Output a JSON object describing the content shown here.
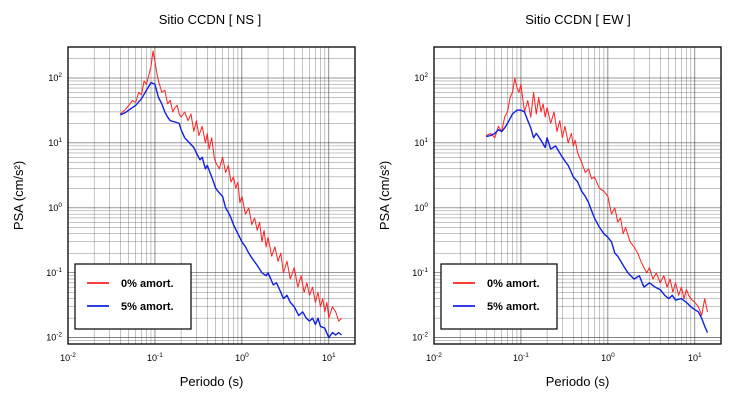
{
  "chart_data": [
    {
      "type": "line",
      "title": "Sitio CCDN [ NS ]",
      "xlabel": "Periodo (s)",
      "ylabel": "PSA (cm/s²)",
      "xscale": "log",
      "yscale": "log",
      "xlim": [
        0.01,
        20
      ],
      "ylim": [
        0.008,
        300
      ],
      "xticks": [
        {
          "value": 0.01,
          "label": "10",
          "exp": "-2"
        },
        {
          "value": 0.1,
          "label": "10",
          "exp": "-1"
        },
        {
          "value": 1,
          "label": "10",
          "exp": "0"
        },
        {
          "value": 10,
          "label": "10",
          "exp": "1"
        }
      ],
      "yticks": [
        {
          "value": 0.01,
          "label": "10",
          "exp": "-2"
        },
        {
          "value": 0.1,
          "label": "10",
          "exp": "-1"
        },
        {
          "value": 1,
          "label": "10",
          "exp": "0"
        },
        {
          "value": 10,
          "label": "10",
          "exp": "1"
        },
        {
          "value": 100,
          "label": "10",
          "exp": "2"
        }
      ],
      "grid": true,
      "legend_position": "bottom-left",
      "series": [
        {
          "name": "0% amort.",
          "color": "#ff2020",
          "x": [
            0.04,
            0.045,
            0.05,
            0.055,
            0.06,
            0.065,
            0.07,
            0.075,
            0.08,
            0.085,
            0.09,
            0.095,
            0.1,
            0.105,
            0.11,
            0.12,
            0.13,
            0.14,
            0.15,
            0.16,
            0.17,
            0.18,
            0.19,
            0.2,
            0.22,
            0.24,
            0.26,
            0.28,
            0.3,
            0.32,
            0.35,
            0.38,
            0.4,
            0.42,
            0.45,
            0.48,
            0.5,
            0.55,
            0.6,
            0.65,
            0.7,
            0.75,
            0.8,
            0.85,
            0.9,
            0.95,
            1.0,
            1.1,
            1.2,
            1.3,
            1.4,
            1.5,
            1.6,
            1.7,
            1.8,
            1.9,
            2.0,
            2.2,
            2.4,
            2.6,
            2.8,
            3.0,
            3.3,
            3.6,
            4.0,
            4.4,
            4.8,
            5.2,
            5.6,
            6.0,
            6.5,
            7.0,
            7.5,
            8.0,
            8.5,
            9.0,
            9.5,
            10.0,
            11.0,
            12.0,
            13.0,
            14.0
          ],
          "y": [
            28,
            32,
            38,
            45,
            42,
            60,
            55,
            90,
            80,
            110,
            150,
            260,
            180,
            120,
            90,
            60,
            65,
            40,
            45,
            30,
            35,
            38,
            28,
            25,
            30,
            22,
            28,
            15,
            22,
            13,
            18,
            10,
            14,
            8,
            12,
            6,
            5,
            4,
            6,
            3.5,
            4.5,
            2.5,
            3,
            2,
            2.5,
            1.2,
            1.5,
            0.8,
            1.0,
            0.55,
            0.7,
            0.45,
            0.6,
            0.3,
            0.45,
            0.25,
            0.35,
            0.18,
            0.25,
            0.15,
            0.2,
            0.1,
            0.15,
            0.08,
            0.12,
            0.06,
            0.09,
            0.05,
            0.07,
            0.045,
            0.06,
            0.035,
            0.05,
            0.03,
            0.04,
            0.025,
            0.035,
            0.02,
            0.03,
            0.025,
            0.018,
            0.02
          ]
        },
        {
          "name": "5% amort.",
          "color": "#1020e0",
          "x": [
            0.04,
            0.045,
            0.05,
            0.06,
            0.07,
            0.08,
            0.09,
            0.1,
            0.11,
            0.12,
            0.13,
            0.14,
            0.15,
            0.17,
            0.19,
            0.2,
            0.22,
            0.25,
            0.28,
            0.3,
            0.33,
            0.35,
            0.38,
            0.4,
            0.43,
            0.45,
            0.5,
            0.55,
            0.6,
            0.65,
            0.7,
            0.75,
            0.8,
            0.9,
            1.0,
            1.1,
            1.2,
            1.3,
            1.5,
            1.7,
            1.9,
            2.0,
            2.3,
            2.5,
            2.8,
            3.0,
            3.3,
            3.6,
            4.0,
            4.5,
            5.0,
            5.5,
            6.0,
            6.5,
            7.0,
            7.5,
            8.0,
            9.0,
            10.0,
            11.0,
            12.0,
            13.0,
            14.0
          ],
          "y": [
            27,
            29,
            32,
            38,
            48,
            65,
            85,
            80,
            50,
            40,
            30,
            25,
            22,
            21,
            20,
            16,
            12,
            10,
            8.5,
            7,
            5.5,
            6,
            4,
            4.5,
            3.5,
            3,
            2,
            1.7,
            1.5,
            1.0,
            0.85,
            0.7,
            0.55,
            0.4,
            0.3,
            0.25,
            0.2,
            0.17,
            0.13,
            0.1,
            0.09,
            0.1,
            0.065,
            0.07,
            0.05,
            0.04,
            0.045,
            0.035,
            0.03,
            0.022,
            0.025,
            0.02,
            0.018,
            0.02,
            0.016,
            0.02,
            0.015,
            0.014,
            0.01,
            0.012,
            0.011,
            0.012,
            0.011
          ]
        }
      ]
    },
    {
      "type": "line",
      "title": "Sitio CCDN [ EW ]",
      "xlabel": "Periodo (s)",
      "ylabel": "PSA (cm/s²)",
      "xscale": "log",
      "yscale": "log",
      "xlim": [
        0.01,
        20
      ],
      "ylim": [
        0.008,
        300
      ],
      "xticks": [
        {
          "value": 0.01,
          "label": "10",
          "exp": "-2"
        },
        {
          "value": 0.1,
          "label": "10",
          "exp": "-1"
        },
        {
          "value": 1,
          "label": "10",
          "exp": "0"
        },
        {
          "value": 10,
          "label": "10",
          "exp": "1"
        }
      ],
      "yticks": [
        {
          "value": 0.01,
          "label": "10",
          "exp": "-2"
        },
        {
          "value": 0.1,
          "label": "10",
          "exp": "-1"
        },
        {
          "value": 1,
          "label": "10",
          "exp": "0"
        },
        {
          "value": 10,
          "label": "10",
          "exp": "1"
        },
        {
          "value": 100,
          "label": "10",
          "exp": "2"
        }
      ],
      "grid": true,
      "legend_position": "bottom-left",
      "series": [
        {
          "name": "0% amort.",
          "color": "#ff2020",
          "x": [
            0.04,
            0.045,
            0.05,
            0.055,
            0.06,
            0.065,
            0.07,
            0.075,
            0.08,
            0.085,
            0.09,
            0.095,
            0.1,
            0.11,
            0.12,
            0.13,
            0.14,
            0.15,
            0.16,
            0.17,
            0.18,
            0.19,
            0.2,
            0.22,
            0.24,
            0.26,
            0.28,
            0.3,
            0.32,
            0.35,
            0.38,
            0.4,
            0.42,
            0.45,
            0.5,
            0.55,
            0.6,
            0.65,
            0.7,
            0.8,
            0.9,
            1.0,
            1.1,
            1.2,
            1.3,
            1.4,
            1.5,
            1.6,
            1.8,
            2.0,
            2.2,
            2.4,
            2.6,
            2.8,
            3.0,
            3.3,
            3.6,
            4.0,
            4.4,
            4.8,
            5.2,
            5.6,
            6.0,
            6.5,
            7.0,
            7.5,
            8.0,
            8.5,
            9.0,
            10.0,
            11.0,
            12.0,
            13.0,
            14.0
          ],
          "y": [
            13,
            14,
            12,
            18,
            15,
            25,
            30,
            50,
            60,
            100,
            70,
            60,
            80,
            30,
            45,
            25,
            60,
            28,
            50,
            30,
            40,
            25,
            35,
            20,
            30,
            15,
            22,
            12,
            18,
            10,
            14,
            9,
            11,
            7,
            5,
            3.5,
            4,
            2.8,
            3,
            2,
            1.8,
            1.5,
            0.8,
            1.0,
            0.6,
            0.7,
            0.4,
            0.5,
            0.3,
            0.25,
            0.2,
            0.15,
            0.12,
            0.1,
            0.12,
            0.08,
            0.1,
            0.07,
            0.09,
            0.06,
            0.08,
            0.05,
            0.07,
            0.045,
            0.06,
            0.04,
            0.055,
            0.045,
            0.04,
            0.035,
            0.03,
            0.022,
            0.04,
            0.025
          ]
        },
        {
          "name": "5% amort.",
          "color": "#1020e0",
          "x": [
            0.04,
            0.045,
            0.05,
            0.055,
            0.06,
            0.065,
            0.07,
            0.08,
            0.09,
            0.1,
            0.11,
            0.12,
            0.13,
            0.14,
            0.15,
            0.17,
            0.19,
            0.2,
            0.22,
            0.25,
            0.28,
            0.3,
            0.33,
            0.35,
            0.38,
            0.4,
            0.45,
            0.5,
            0.55,
            0.6,
            0.65,
            0.7,
            0.8,
            0.9,
            1.0,
            1.1,
            1.2,
            1.3,
            1.5,
            1.7,
            2.0,
            2.3,
            2.6,
            3.0,
            3.5,
            4.0,
            4.5,
            5.0,
            5.5,
            6.0,
            7.0,
            8.0,
            9.0,
            10.0,
            11.0,
            12.0,
            13.0,
            14.0
          ],
          "y": [
            12.5,
            13,
            14,
            16,
            15,
            17,
            20,
            28,
            32,
            32,
            30,
            22,
            17,
            12,
            14,
            11,
            8.5,
            12,
            8,
            9,
            7,
            6,
            5,
            4.5,
            3.5,
            3,
            2.5,
            1.8,
            1.5,
            1.2,
            0.9,
            0.7,
            0.5,
            0.4,
            0.35,
            0.3,
            0.2,
            0.18,
            0.13,
            0.1,
            0.08,
            0.09,
            0.06,
            0.07,
            0.06,
            0.055,
            0.045,
            0.04,
            0.045,
            0.038,
            0.04,
            0.035,
            0.03,
            0.027,
            0.025,
            0.02,
            0.015,
            0.012
          ]
        }
      ]
    }
  ]
}
